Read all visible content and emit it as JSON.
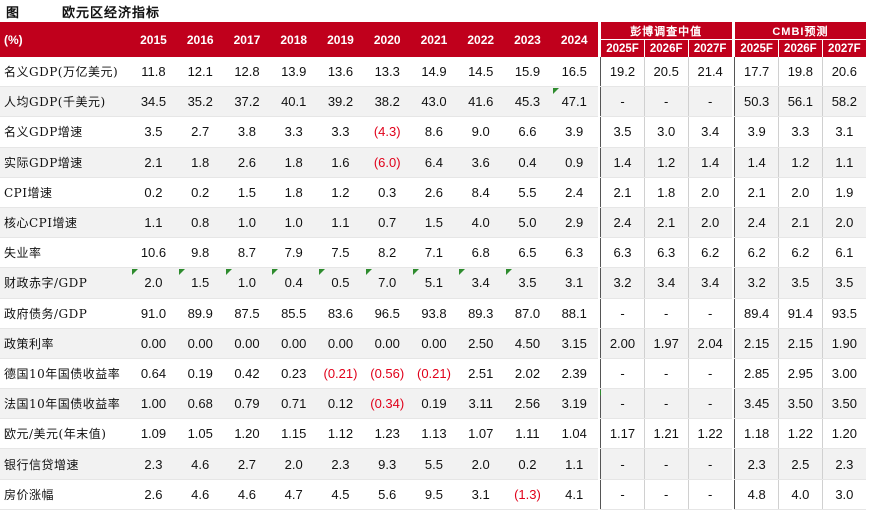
{
  "title": {
    "prefix": "图",
    "text": "欧元区经济指标"
  },
  "header": {
    "unit_label": "(%)",
    "years": [
      "2015",
      "2016",
      "2017",
      "2018",
      "2019",
      "2020",
      "2021",
      "2022",
      "2023",
      "2024"
    ],
    "group_consensus": "彭博调查中值",
    "group_cmbi": "CMBI预测",
    "consensus_years": [
      "2025F",
      "2026F",
      "2027F"
    ],
    "cmbi_years": [
      "2025F",
      "2026F",
      "2027F"
    ]
  },
  "rows": [
    {
      "label": "名义GDP(万亿美元)",
      "hist": [
        "11.8",
        "12.1",
        "12.8",
        "13.9",
        "13.6",
        "13.3",
        "14.9",
        "14.5",
        "15.9",
        "16.5"
      ],
      "cons": [
        "19.2",
        "20.5",
        "21.4"
      ],
      "cmbi": [
        "17.7",
        "19.8",
        "20.6"
      ],
      "neg": [],
      "mark": []
    },
    {
      "label": "人均GDP(千美元)",
      "hist": [
        "34.5",
        "35.2",
        "37.2",
        "40.1",
        "39.2",
        "38.2",
        "43.0",
        "41.6",
        "45.3",
        "47.1"
      ],
      "cons": [
        "-",
        "-",
        "-"
      ],
      "cmbi": [
        "50.3",
        "56.1",
        "58.2"
      ],
      "neg": [],
      "mark": [
        9
      ]
    },
    {
      "label": "名义GDP增速",
      "hist": [
        "3.5",
        "2.7",
        "3.8",
        "3.3",
        "3.3",
        "(4.3)",
        "8.6",
        "9.0",
        "6.6",
        "3.9"
      ],
      "cons": [
        "3.5",
        "3.0",
        "3.4"
      ],
      "cmbi": [
        "3.9",
        "3.3",
        "3.1"
      ],
      "neg": [
        5
      ],
      "mark": []
    },
    {
      "label": "实际GDP增速",
      "hist": [
        "2.1",
        "1.8",
        "2.6",
        "1.8",
        "1.6",
        "(6.0)",
        "6.4",
        "3.6",
        "0.4",
        "0.9"
      ],
      "cons": [
        "1.4",
        "1.2",
        "1.4"
      ],
      "cmbi": [
        "1.4",
        "1.2",
        "1.1"
      ],
      "neg": [
        5
      ],
      "mark": []
    },
    {
      "label": "CPI增速",
      "hist": [
        "0.2",
        "0.2",
        "1.5",
        "1.8",
        "1.2",
        "0.3",
        "2.6",
        "8.4",
        "5.5",
        "2.4"
      ],
      "cons": [
        "2.1",
        "1.8",
        "2.0"
      ],
      "cmbi": [
        "2.1",
        "2.0",
        "1.9"
      ],
      "neg": [],
      "mark": []
    },
    {
      "label": "核心CPI增速",
      "hist": [
        "1.1",
        "0.8",
        "1.0",
        "1.0",
        "1.1",
        "0.7",
        "1.5",
        "4.0",
        "5.0",
        "2.9"
      ],
      "cons": [
        "2.4",
        "2.1",
        "2.0"
      ],
      "cmbi": [
        "2.4",
        "2.1",
        "2.0"
      ],
      "neg": [],
      "mark": []
    },
    {
      "label": "失业率",
      "hist": [
        "10.6",
        "9.8",
        "8.7",
        "7.9",
        "7.5",
        "8.2",
        "7.1",
        "6.8",
        "6.5",
        "6.3"
      ],
      "cons": [
        "6.3",
        "6.3",
        "6.2"
      ],
      "cmbi": [
        "6.2",
        "6.2",
        "6.1"
      ],
      "neg": [],
      "mark": []
    },
    {
      "label": "财政赤字/GDP",
      "hist": [
        "2.0",
        "1.5",
        "1.0",
        "0.4",
        "0.5",
        "7.0",
        "5.1",
        "3.4",
        "3.5",
        "3.1"
      ],
      "cons": [
        "3.2",
        "3.4",
        "3.4"
      ],
      "cmbi": [
        "3.2",
        "3.5",
        "3.5"
      ],
      "neg": [],
      "mark": [
        0,
        1,
        2,
        3,
        4,
        5,
        6,
        7,
        8
      ]
    },
    {
      "label": "政府债务/GDP",
      "hist": [
        "91.0",
        "89.9",
        "87.5",
        "85.5",
        "83.6",
        "96.5",
        "93.8",
        "89.3",
        "87.0",
        "88.1"
      ],
      "cons": [
        "-",
        "-",
        "-"
      ],
      "cmbi": [
        "89.4",
        "91.4",
        "93.5"
      ],
      "neg": [],
      "mark": []
    },
    {
      "label": "政策利率",
      "hist": [
        "0.00",
        "0.00",
        "0.00",
        "0.00",
        "0.00",
        "0.00",
        "0.00",
        "2.50",
        "4.50",
        "3.15"
      ],
      "cons": [
        "2.00",
        "1.97",
        "2.04"
      ],
      "cmbi": [
        "2.15",
        "2.15",
        "1.90"
      ],
      "neg": [],
      "mark": []
    },
    {
      "label": "德国10年国债收益率",
      "hist": [
        "0.64",
        "0.19",
        "0.42",
        "0.23",
        "(0.21)",
        "(0.56)",
        "(0.21)",
        "2.51",
        "2.02",
        "2.39"
      ],
      "cons": [
        "-",
        "-",
        "-"
      ],
      "cmbi": [
        "2.85",
        "2.95",
        "3.00"
      ],
      "neg": [
        4,
        5,
        6
      ],
      "mark": []
    },
    {
      "label": "法国10年国债收益率",
      "hist": [
        "1.00",
        "0.68",
        "0.79",
        "0.71",
        "0.12",
        "(0.34)",
        "0.19",
        "3.11",
        "2.56",
        "3.19"
      ],
      "cons": [
        "-",
        "-",
        "-"
      ],
      "cmbi": [
        "3.45",
        "3.50",
        "3.50"
      ],
      "neg": [
        5
      ],
      "mark": [
        10
      ]
    },
    {
      "label": "欧元/美元(年末值)",
      "hist": [
        "1.09",
        "1.05",
        "1.20",
        "1.15",
        "1.12",
        "1.23",
        "1.13",
        "1.07",
        "1.11",
        "1.04"
      ],
      "cons": [
        "1.17",
        "1.21",
        "1.22"
      ],
      "cmbi": [
        "1.18",
        "1.22",
        "1.20"
      ],
      "neg": [],
      "mark": []
    },
    {
      "label": "银行信贷增速",
      "hist": [
        "2.3",
        "4.6",
        "2.7",
        "2.0",
        "2.3",
        "9.3",
        "5.5",
        "2.0",
        "0.2",
        "1.1"
      ],
      "cons": [
        "-",
        "-",
        "-"
      ],
      "cmbi": [
        "2.3",
        "2.5",
        "2.3"
      ],
      "neg": [],
      "mark": []
    },
    {
      "label": "房价涨幅",
      "hist": [
        "2.6",
        "4.6",
        "4.6",
        "4.7",
        "4.5",
        "5.6",
        "9.5",
        "3.1",
        "(1.3)",
        "4.1"
      ],
      "cons": [
        "-",
        "-",
        "-"
      ],
      "cmbi": [
        "4.8",
        "4.0",
        "3.0"
      ],
      "neg": [
        8
      ],
      "mark": []
    }
  ],
  "colors": {
    "header_bg": "#c0001c",
    "negative": "#e0001a",
    "stripe": "#f2f2f2",
    "note_marker": "#2e8b2e"
  }
}
